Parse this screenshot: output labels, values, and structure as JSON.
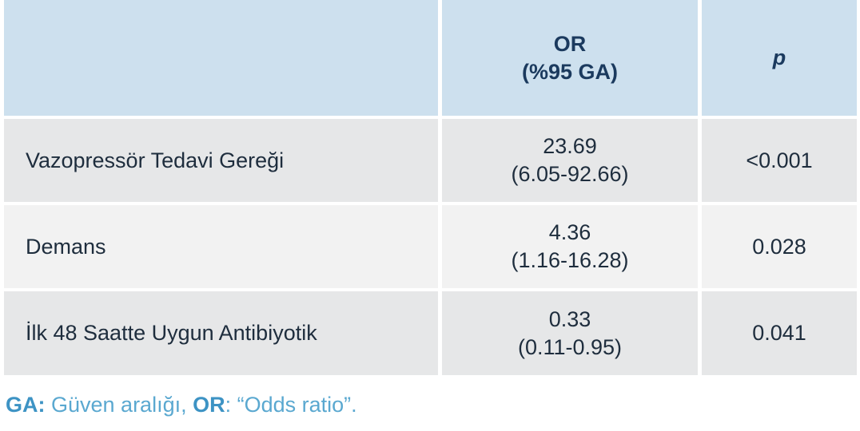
{
  "table": {
    "header": [
      "",
      [
        "OR",
        "(%95 GA)"
      ],
      "p"
    ],
    "rows": [
      [
        "Vazopressör Tedavi Gereği",
        [
          "23.69",
          "(6.05-92.66)"
        ],
        "<0.001"
      ],
      [
        "Demans",
        [
          "4.36",
          "(1.16-16.28)"
        ],
        "0.028"
      ],
      [
        "İlk 48 Saatte Uygun Antibiyotik",
        [
          "0.33",
          "(0.11-0.95)"
        ],
        "0.041"
      ]
    ]
  },
  "footnote": [
    "GA:",
    " Güven aralığı, ",
    "OR",
    ": “Odds ratio”."
  ]
}
